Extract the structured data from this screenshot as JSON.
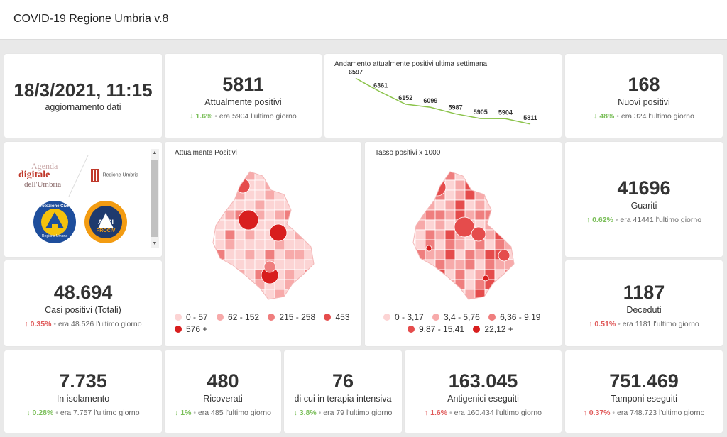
{
  "header": {
    "title": "COVID-19 Regione Umbria v.8"
  },
  "update": {
    "datetime": "18/3/2021, 11:15",
    "label": "aggiornamento dati"
  },
  "kpis": {
    "attualmente_positivi": {
      "value": "5811",
      "label": "Attualmente positivi",
      "pct": "1.6%",
      "prev": "era 5904 l'ultimo giorno",
      "direction": "down"
    },
    "nuovi_positivi": {
      "value": "168",
      "label": "Nuovi positivi",
      "pct": "48%",
      "prev": "era 324 l'ultimo giorno",
      "direction": "down"
    },
    "guariti": {
      "value": "41696",
      "label": "Guariti",
      "pct": "0.62%",
      "prev": "era 41441 l'ultimo giorno",
      "direction": "up"
    },
    "casi_totali": {
      "value": "48.694",
      "label": "Casi positivi (Totali)",
      "pct": "0.35%",
      "prev": "era 48.526 l'ultimo giorno",
      "direction": "up"
    },
    "deceduti": {
      "value": "1187",
      "label": "Deceduti",
      "pct": "0.51%",
      "prev": "era 1181 l'ultimo giorno",
      "direction": "up"
    },
    "isolamento": {
      "value": "7.735",
      "label": "In isolamento",
      "pct": "0.28%",
      "prev": "era 7.757 l'ultimo giorno",
      "direction": "down"
    },
    "ricoverati": {
      "value": "480",
      "label": "Ricoverati",
      "pct": "1%",
      "prev": "era 485 l'ultimo giorno",
      "direction": "down"
    },
    "terapia_intensiva": {
      "value": "76",
      "label": "di cui in terapia intensiva",
      "pct": "3.8%",
      "prev": "era 79 l'ultimo giorno",
      "direction": "down"
    },
    "antigenici": {
      "value": "163.045",
      "label": "Antigenici eseguiti",
      "pct": "1.6%",
      "prev": "era 160.434 l'ultimo giorno",
      "direction": "up"
    },
    "tamponi": {
      "value": "751.469",
      "label": "Tamponi eseguiti",
      "pct": "0.37%",
      "prev": "era 748.723 l'ultimo giorno",
      "direction": "up"
    }
  },
  "icons": {
    "arrow_up": "↑",
    "arrow_down": "↓",
    "sep": "•"
  },
  "logos": {
    "agenda_line1": "Agenda",
    "agenda_line2": "digitale",
    "agenda_line3": "dell'Umbria",
    "regione": "Regione Umbria",
    "protezione": "Protezione Civile",
    "protezione_sub": "Regione Umbria",
    "anci": "ANCI",
    "anci_sub": "PROCIV"
  },
  "map_attualmente": {
    "title": "Attualmente Positivi",
    "legend": [
      {
        "label": "0 - 57",
        "color": "#fcd4d4"
      },
      {
        "label": "62 - 152",
        "color": "#f7aaaa"
      },
      {
        "label": "215 - 258",
        "color": "#ef7e7e"
      },
      {
        "label": "453",
        "color": "#e54c4c"
      },
      {
        "label": "576 +",
        "color": "#d81e1e"
      }
    ]
  },
  "map_tasso": {
    "title": "Tasso positivi x 1000",
    "legend": [
      {
        "label": "0 - 3,17",
        "color": "#fcd4d4"
      },
      {
        "label": "3,4 - 5,76",
        "color": "#f7aaaa"
      },
      {
        "label": "6,36 - 9,19",
        "color": "#ef7e7e"
      },
      {
        "label": "9,87 - 15,41",
        "color": "#e54c4c"
      },
      {
        "label": "22,12 +",
        "color": "#d81e1e"
      }
    ]
  },
  "chart_data": {
    "type": "line",
    "title": "Andamento attualmente positivi ultima settimana",
    "values": [
      6597,
      6361,
      6152,
      6099,
      5987,
      5905,
      5904,
      5811
    ],
    "labels": [
      "6597",
      "6361",
      "6152",
      "6099",
      "5987",
      "5905",
      "5904",
      "5811"
    ],
    "ylim": [
      5700,
      6650
    ],
    "line_color": "#8bc34a",
    "grid": false
  }
}
